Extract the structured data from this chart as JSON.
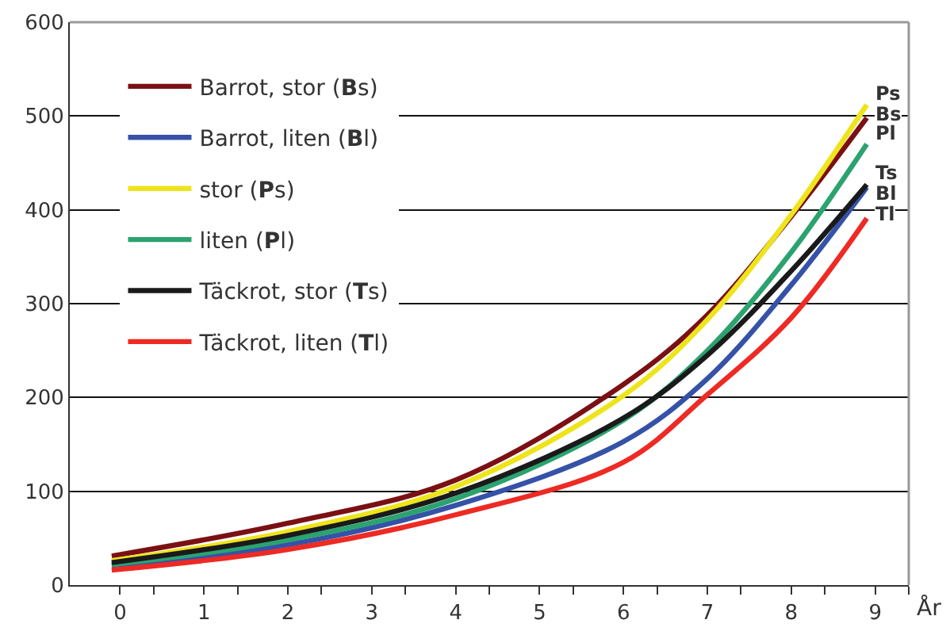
{
  "chart_data": {
    "type": "line",
    "xlabel": "År",
    "x": [
      -0.1,
      2,
      4,
      6,
      7,
      8,
      8.9
    ],
    "series": [
      {
        "name": "Barrot, stor (Bs)",
        "color": "#7b1014",
        "values": [
          31,
          66,
          112,
          214,
          288,
          393,
          498
        ]
      },
      {
        "name": "Barrot, liten (Bl)",
        "color": "#3552a8",
        "values": [
          21,
          43,
          85,
          153,
          220,
          320,
          424
        ]
      },
      {
        "name": "stor (Ps)",
        "color": "#eee41c",
        "values": [
          26,
          57,
          105,
          202,
          283,
          395,
          512
        ]
      },
      {
        "name": "liten (Pl)",
        "color": "#2ba36f",
        "values": [
          22,
          48,
          92,
          176,
          250,
          355,
          470
        ]
      },
      {
        "name": "Täckrot, stor (Ts)",
        "color": "#1a1a1a",
        "values": [
          24,
          53,
          98,
          178,
          245,
          335,
          427
        ]
      },
      {
        "name": "Täckrot, liten (Tl)",
        "color": "#ee2a24",
        "values": [
          16,
          38,
          75,
          131,
          203,
          285,
          391
        ]
      }
    ],
    "annotations": [
      "Ps",
      "Bs",
      "Pl",
      "Ts",
      "Bl",
      "Tl"
    ],
    "xlim": [
      -0.6,
      9.4
    ],
    "xticks": [
      0,
      1,
      2,
      3,
      4,
      5,
      6,
      7,
      8,
      9,
      {
        "value": 0.4,
        "label": null
      },
      {
        "value": 1.4,
        "label": null
      },
      {
        "value": 2.4,
        "label": null
      },
      {
        "value": 3.4,
        "label": null
      },
      {
        "value": 4.4,
        "label": null
      },
      {
        "value": 5.4,
        "label": null
      },
      {
        "value": 6.4,
        "label": null
      },
      {
        "value": 7.4,
        "label": null
      },
      {
        "value": 8.4,
        "label": null
      },
      {
        "value": 9.4,
        "label": null
      }
    ],
    "ylim": [
      0,
      600
    ],
    "yticks": [
      0,
      100,
      200,
      300,
      400,
      500,
      600
    ],
    "grid": "y",
    "legend": "top left",
    "marker": "none",
    "line_style": "solid"
  }
}
